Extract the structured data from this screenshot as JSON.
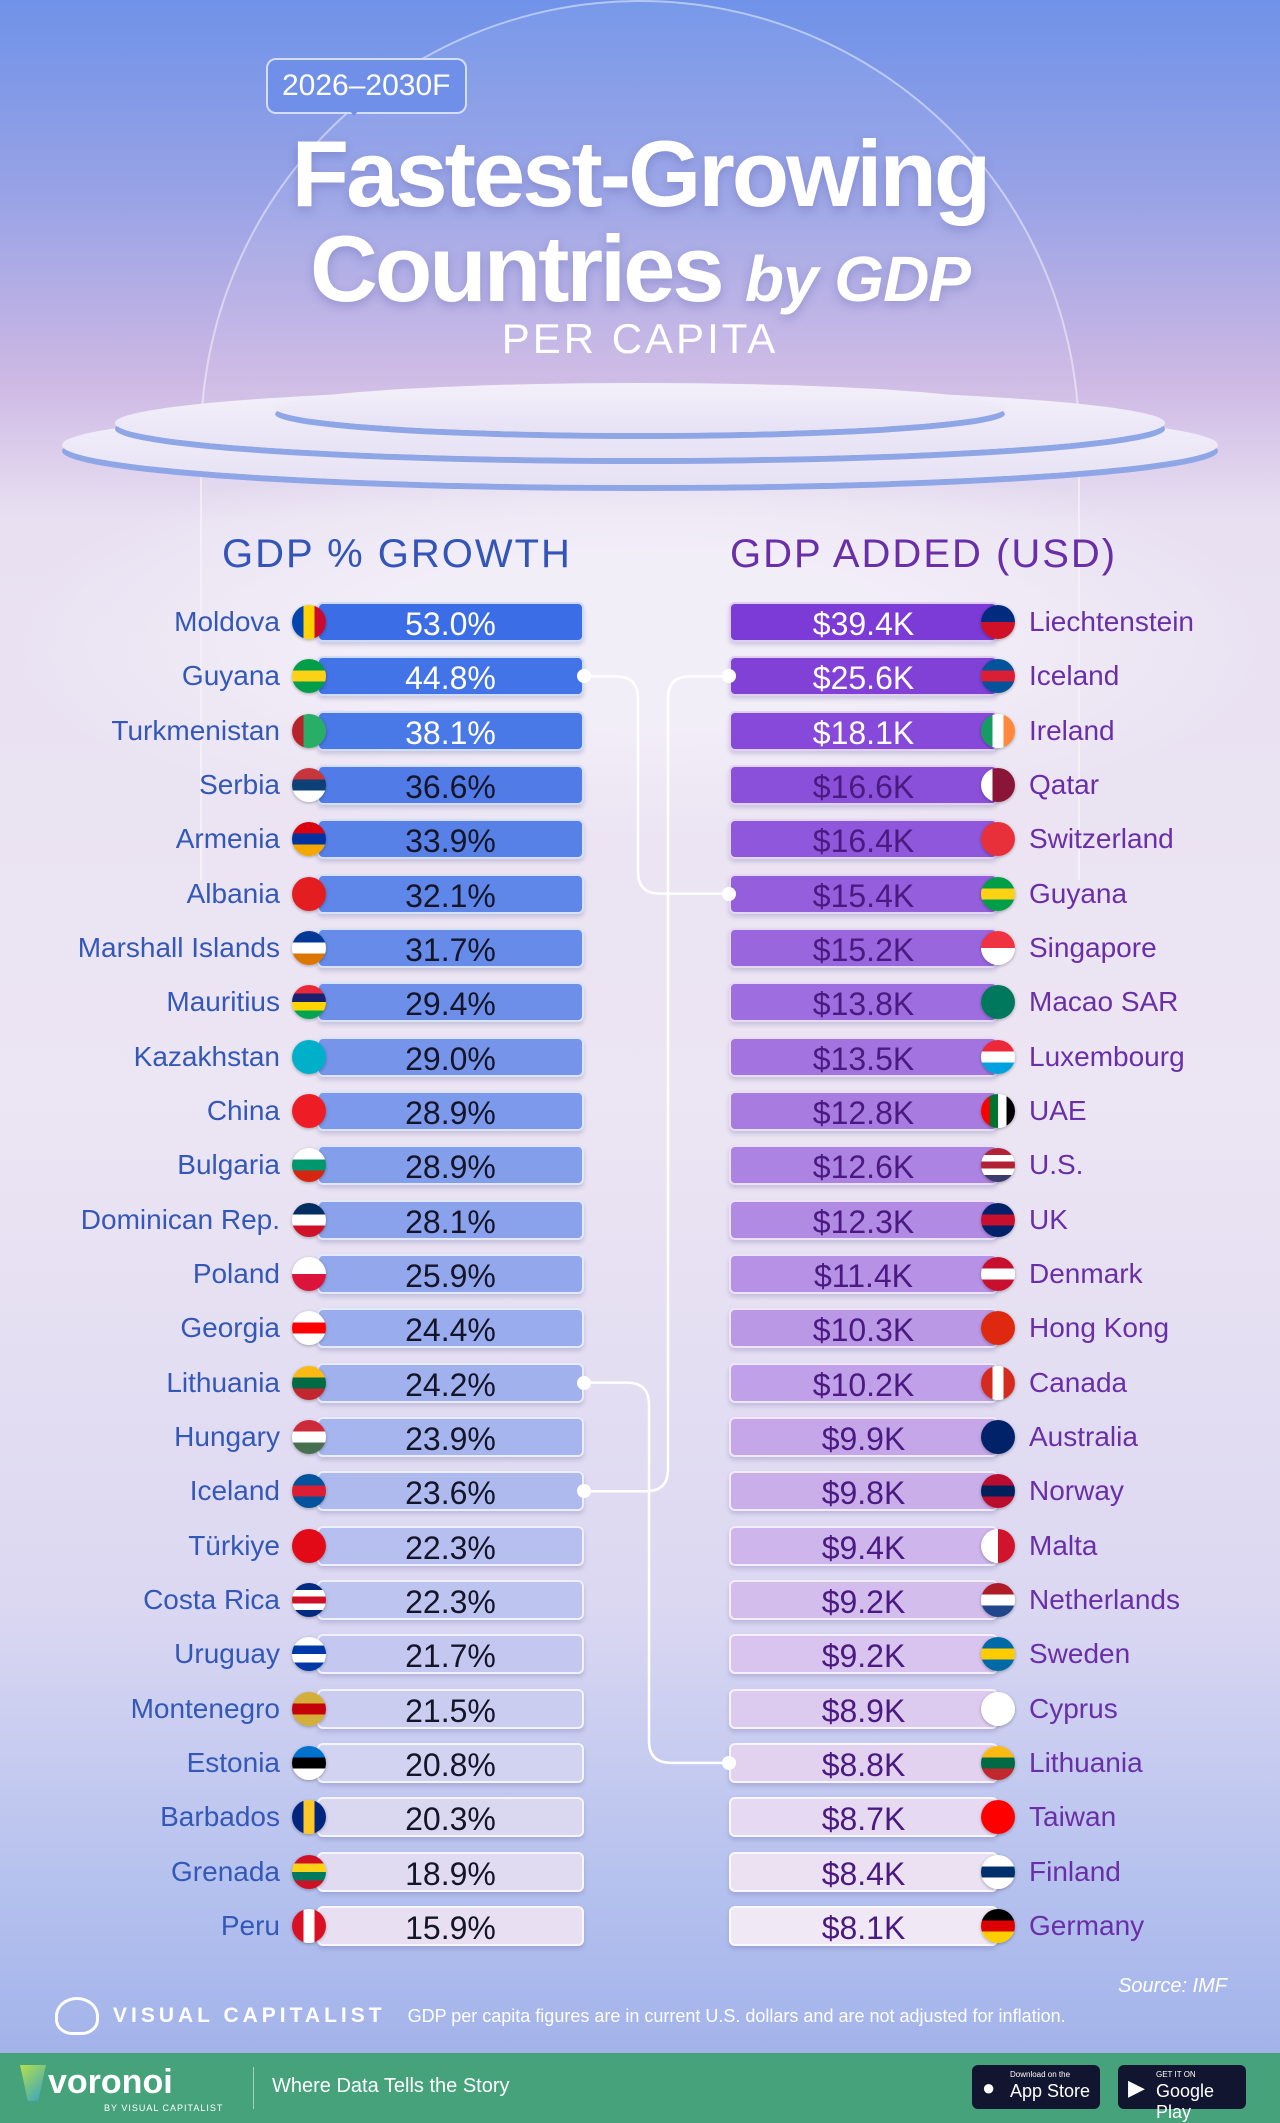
{
  "header": {
    "badge": "2026–2030F",
    "title_line1": "Fastest-Growing",
    "title_line2a": "Countries",
    "title_line2b": "by GDP",
    "subtitle": "PER CAPITA"
  },
  "chart_data": [
    {
      "type": "bar",
      "title": "GDP % GROWTH",
      "unit": "%",
      "label_color": "#3458b8",
      "bar_color_top": "#3b6ee6",
      "bar_color_bottom": "#e8e0f2",
      "categories": [
        "Moldova",
        "Guyana",
        "Turkmenistan",
        "Serbia",
        "Armenia",
        "Albania",
        "Marshall Islands",
        "Mauritius",
        "Kazakhstan",
        "China",
        "Bulgaria",
        "Dominican Rep.",
        "Poland",
        "Georgia",
        "Lithuania",
        "Hungary",
        "Iceland",
        "Türkiye",
        "Costa Rica",
        "Uruguay",
        "Montenegro",
        "Estonia",
        "Barbados",
        "Grenada",
        "Peru"
      ],
      "values": [
        53.0,
        44.8,
        38.1,
        36.6,
        33.9,
        32.1,
        31.7,
        29.4,
        29.0,
        28.9,
        28.9,
        28.1,
        25.9,
        24.4,
        24.2,
        23.9,
        23.6,
        22.3,
        22.3,
        21.7,
        21.5,
        20.8,
        20.3,
        18.9,
        15.9
      ],
      "labels": [
        "53.0%",
        "44.8%",
        "38.1%",
        "36.6%",
        "33.9%",
        "32.1%",
        "31.7%",
        "29.4%",
        "29.0%",
        "28.9%",
        "28.9%",
        "28.1%",
        "25.9%",
        "24.4%",
        "24.2%",
        "23.9%",
        "23.6%",
        "22.3%",
        "22.3%",
        "21.7%",
        "21.5%",
        "20.8%",
        "20.3%",
        "18.9%",
        "15.9%"
      ]
    },
    {
      "type": "bar",
      "title": "GDP ADDED (USD)",
      "unit": "USD thousands",
      "label_color": "#6a2fa8",
      "bar_color_top": "#7c3ad6",
      "bar_color_bottom": "#f0e8f4",
      "categories": [
        "Liechtenstein",
        "Iceland",
        "Ireland",
        "Qatar",
        "Switzerland",
        "Guyana",
        "Singapore",
        "Macao SAR",
        "Luxembourg",
        "UAE",
        "U.S.",
        "UK",
        "Denmark",
        "Hong Kong",
        "Canada",
        "Australia",
        "Norway",
        "Malta",
        "Netherlands",
        "Sweden",
        "Cyprus",
        "Lithuania",
        "Taiwan",
        "Finland",
        "Germany"
      ],
      "values": [
        39.4,
        25.6,
        18.1,
        16.6,
        16.4,
        15.4,
        15.2,
        13.8,
        13.5,
        12.8,
        12.6,
        12.3,
        11.4,
        10.3,
        10.2,
        9.9,
        9.8,
        9.4,
        9.2,
        9.2,
        8.9,
        8.8,
        8.7,
        8.4,
        8.1
      ],
      "labels": [
        "$39.4K",
        "$25.6K",
        "$18.1K",
        "$16.6K",
        "$16.4K",
        "$15.4K",
        "$15.2K",
        "$13.8K",
        "$13.5K",
        "$12.8K",
        "$12.6K",
        "$12.3K",
        "$11.4K",
        "$10.3K",
        "$10.2K",
        "$9.9K",
        "$9.8K",
        "$9.4K",
        "$9.2K",
        "$9.2K",
        "$8.9K",
        "$8.8K",
        "$8.7K",
        "$8.4K",
        "$8.1K"
      ]
    }
  ],
  "connections": [
    {
      "country": "Guyana",
      "left_rank": 2,
      "right_rank": 6
    },
    {
      "country": "Iceland",
      "left_rank": 17,
      "right_rank": 2
    },
    {
      "country": "Lithuania",
      "left_rank": 15,
      "right_rank": 22
    }
  ],
  "flags": {
    "Moldova": [
      "v",
      "#0046ae",
      "#ffd200",
      "#cc092f"
    ],
    "Guyana": [
      "h",
      "#009e49",
      "#fcd116",
      "#009e49"
    ],
    "Turkmenistan": [
      "v",
      "#b7222b",
      "#28ae66",
      "#28ae66"
    ],
    "Serbia": [
      "h",
      "#c6363c",
      "#0c4076",
      "#ffffff"
    ],
    "Armenia": [
      "h",
      "#d90012",
      "#0033a0",
      "#f2a800"
    ],
    "Albania": [
      "h",
      "#e41e20",
      "#e41e20",
      "#e41e20"
    ],
    "Marshall Islands": [
      "h",
      "#003893",
      "#ffffff",
      "#dd7500"
    ],
    "Mauritius": [
      "h",
      "#ea2839",
      "#1a206d",
      "#ffd500",
      "#00a551"
    ],
    "Kazakhstan": [
      "h",
      "#00afca",
      "#00afca",
      "#00afca"
    ],
    "China": [
      "h",
      "#ee1c25",
      "#ee1c25",
      "#ee1c25"
    ],
    "Bulgaria": [
      "h",
      "#ffffff",
      "#00966e",
      "#d62612"
    ],
    "Dominican Rep.": [
      "h",
      "#002d62",
      "#ffffff",
      "#ce1126"
    ],
    "Poland": [
      "h",
      "#ffffff",
      "#dc143c"
    ],
    "Georgia": [
      "h",
      "#ffffff",
      "#ff0000",
      "#ffffff"
    ],
    "Lithuania": [
      "h",
      "#fdb913",
      "#006a44",
      "#c1272d"
    ],
    "Hungary": [
      "h",
      "#ce2939",
      "#ffffff",
      "#477050"
    ],
    "Iceland": [
      "h",
      "#02529c",
      "#dc1e35",
      "#02529c"
    ],
    "Türkiye": [
      "h",
      "#e30a17",
      "#e30a17"
    ],
    "Costa Rica": [
      "h",
      "#002b7f",
      "#ffffff",
      "#ce1126",
      "#ffffff",
      "#002b7f"
    ],
    "Uruguay": [
      "h",
      "#ffffff",
      "#0038a8",
      "#ffffff",
      "#0038a8"
    ],
    "Montenegro": [
      "h",
      "#d3ae3b",
      "#c40308",
      "#d3ae3b"
    ],
    "Estonia": [
      "h",
      "#0072ce",
      "#000000",
      "#ffffff"
    ],
    "Barbados": [
      "v",
      "#00267f",
      "#ffc726",
      "#00267f"
    ],
    "Grenada": [
      "h",
      "#ce1126",
      "#fcd116",
      "#007a5e",
      "#ce1126"
    ],
    "Peru": [
      "v",
      "#d91023",
      "#ffffff",
      "#d91023"
    ],
    "Liechtenstein": [
      "h",
      "#002b7f",
      "#ce1126"
    ],
    "Ireland": [
      "v",
      "#169b62",
      "#ffffff",
      "#ff883e"
    ],
    "Qatar": [
      "v",
      "#ffffff",
      "#8a1538",
      "#8a1538"
    ],
    "Switzerland": [
      "h",
      "#e8303a",
      "#e8303a"
    ],
    "Singapore": [
      "h",
      "#ef3340",
      "#ffffff"
    ],
    "Macao SAR": [
      "h",
      "#00785e",
      "#00785e"
    ],
    "Luxembourg": [
      "h",
      "#ed2939",
      "#ffffff",
      "#00a1de"
    ],
    "UAE": [
      "v",
      "#ff0000",
      "#00732f",
      "#ffffff",
      "#000000"
    ],
    "U.S.": [
      "h",
      "#b22234",
      "#ffffff",
      "#b22234",
      "#ffffff",
      "#3c3b6e"
    ],
    "UK": [
      "h",
      "#012169",
      "#c8102e",
      "#012169"
    ],
    "Denmark": [
      "h",
      "#c8102e",
      "#ffffff",
      "#c8102e"
    ],
    "Hong Kong": [
      "h",
      "#de2910",
      "#de2910"
    ],
    "Canada": [
      "v",
      "#d52b1e",
      "#ffffff",
      "#d52b1e"
    ],
    "Australia": [
      "h",
      "#012169",
      "#012169"
    ],
    "Norway": [
      "h",
      "#ba0c2f",
      "#00205b",
      "#ba0c2f"
    ],
    "Malta": [
      "v",
      "#ffffff",
      "#cf142b"
    ],
    "Netherlands": [
      "h",
      "#ae1c28",
      "#ffffff",
      "#21468b"
    ],
    "Sweden": [
      "h",
      "#006aa7",
      "#fecc00",
      "#006aa7"
    ],
    "Cyprus": [
      "h",
      "#ffffff",
      "#ffffff"
    ],
    "Taiwan": [
      "h",
      "#fe0000",
      "#fe0000"
    ],
    "Finland": [
      "h",
      "#ffffff",
      "#002f6c",
      "#ffffff"
    ],
    "Germany": [
      "h",
      "#000000",
      "#dd0000",
      "#ffce00"
    ]
  },
  "footer": {
    "source": "Source: IMF",
    "brand": "VISUAL CAPITALIST",
    "note": "GDP per capita figures are in current U.S. dollars and are not adjusted for inflation.",
    "voronoi": "voronoi",
    "voronoi_sub": "BY VISUAL CAPITALIST",
    "tagline": "Where Data Tells the Story",
    "appstore_small": "Download on the",
    "appstore": "App Store",
    "gplay_small": "GET IT ON",
    "gplay": "Google Play"
  },
  "colors": {
    "footer_green": "#45a27b"
  }
}
